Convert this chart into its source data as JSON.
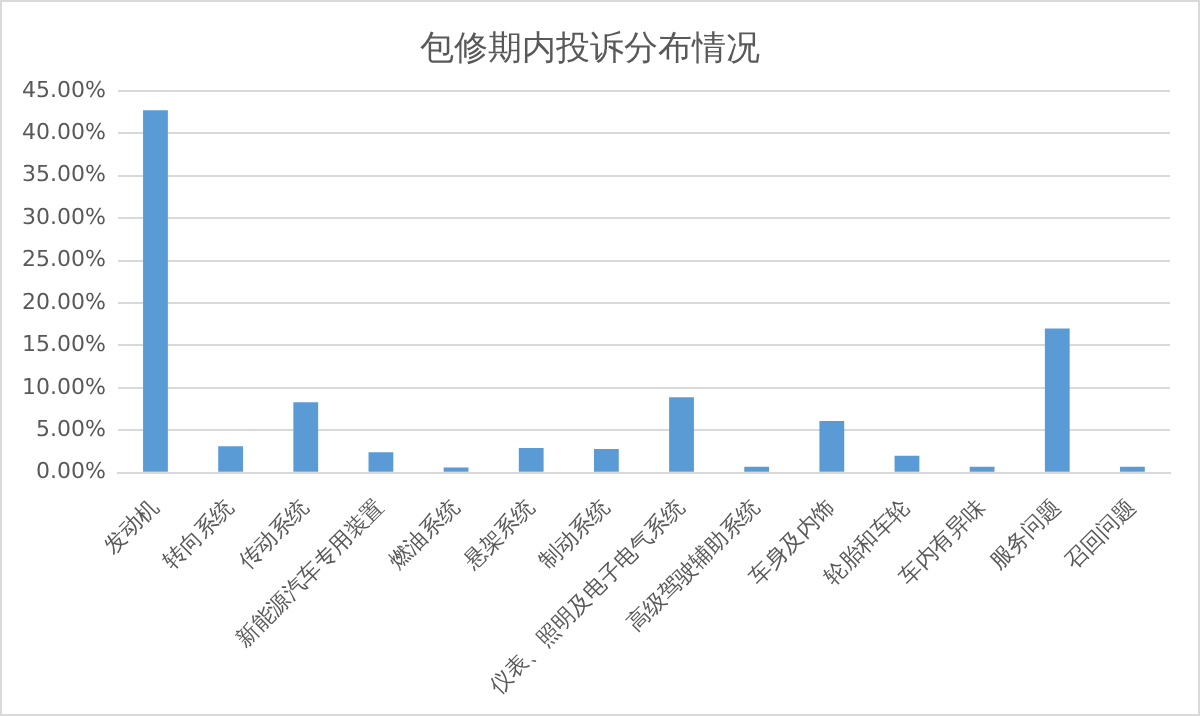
{
  "chart_data": {
    "type": "bar",
    "title": "包修期内投诉分布情况",
    "categories": [
      "发动机",
      "转向系统",
      "传动系统",
      "新能源汽车专用装置",
      "燃油系统",
      "悬架系统",
      "制动系统",
      "仪表、照明及电子电气系统",
      "高级驾驶辅助系统",
      "车身及内饰",
      "轮胎和车轮",
      "车内有异味",
      "服务问题",
      "召回问题"
    ],
    "values": [
      42.7,
      3.1,
      8.3,
      2.4,
      0.6,
      2.9,
      2.8,
      8.9,
      0.7,
      6.1,
      2.0,
      0.7,
      17.0,
      0.7
    ],
    "color": "#5b9bd5",
    "ylim": [
      0,
      45
    ],
    "yticks": [
      {
        "value": 0,
        "label": "0.00%"
      },
      {
        "value": 5,
        "label": "5.00%"
      },
      {
        "value": 10,
        "label": "10.00%"
      },
      {
        "value": 15,
        "label": "15.00%"
      },
      {
        "value": 20,
        "label": "20.00%"
      },
      {
        "value": 25,
        "label": "25.00%"
      },
      {
        "value": 30,
        "label": "30.00%"
      },
      {
        "value": 35,
        "label": "35.00%"
      },
      {
        "value": 40,
        "label": "40.00%"
      },
      {
        "value": 45,
        "label": "45.00%"
      }
    ],
    "grid": "y"
  }
}
